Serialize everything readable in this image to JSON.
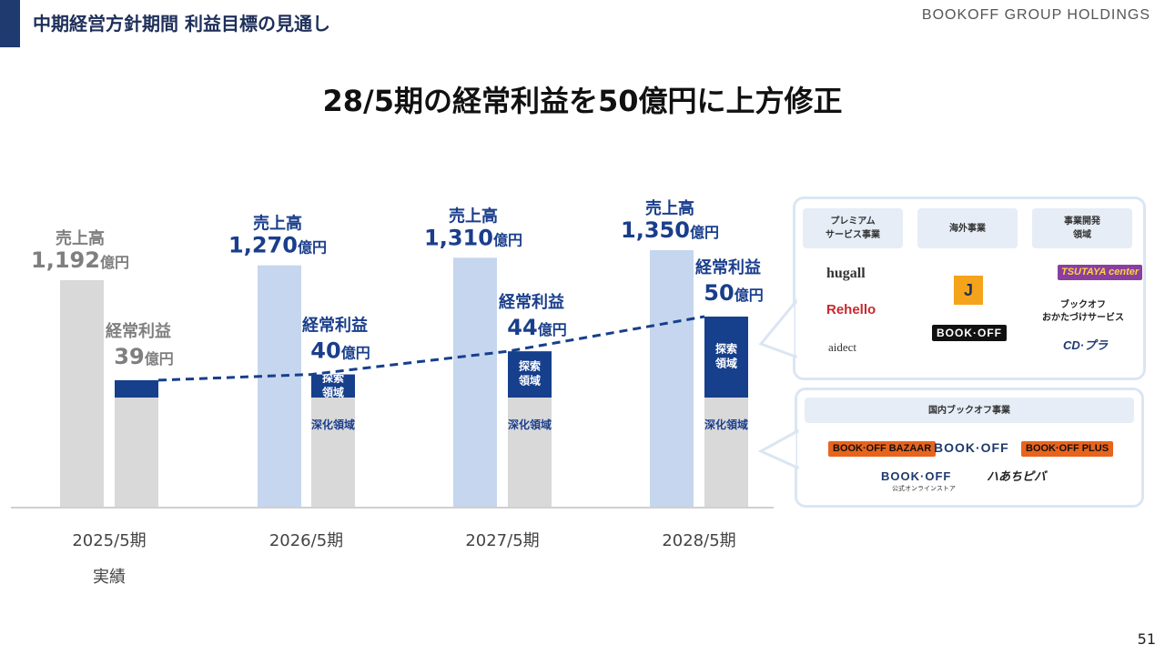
{
  "header": {
    "title": "中期経営方針期間 利益目標の見通し",
    "company": "BOOKOFF GROUP HOLDINGS"
  },
  "headline": "28/5期の経常利益を50億円に上方修正",
  "page_number": "51",
  "chart_data": {
    "type": "bar",
    "categories": [
      "2025/5期",
      "2026/5期",
      "2027/5期",
      "2028/5期"
    ],
    "category_sublabels": [
      "実績",
      "",
      "",
      ""
    ],
    "series": [
      {
        "name": "売上高",
        "values": [
          1192,
          1270,
          1310,
          1350
        ],
        "labels": [
          "1,192",
          "1,270",
          "1,310",
          "1,350"
        ],
        "unit": "億円"
      },
      {
        "name": "経常利益",
        "values": [
          39,
          40,
          44,
          50
        ],
        "labels": [
          "39",
          "40",
          "44",
          "50"
        ],
        "unit": "億円"
      }
    ],
    "segments": {
      "deepening": "深化領域",
      "exploration": "探索\n領域"
    },
    "colors": {
      "actual_bar": "#d9d9d9",
      "sales_bar": "#c5d6ee",
      "deepening_bar": "#d9d9d9",
      "exploration_bar": "#163f8c",
      "label_blue": "#1a3e8c",
      "label_gray": "#7f7f7f",
      "trend_line": "#163f8c"
    }
  },
  "panels": {
    "new_business": {
      "categories": [
        {
          "label": "プレミアム\nサービス事業",
          "logos": [
            "hugall",
            "Rehello",
            "aidect"
          ]
        },
        {
          "label": "海外事業",
          "logos": [
            "J",
            "BOOK·OFF"
          ]
        },
        {
          "label": "事業開発\n領域",
          "logos": [
            "TSUTAYA center",
            "ブックオフ\nおかたづけサービス",
            "CD·プラ"
          ]
        }
      ]
    },
    "domestic": {
      "label": "国内ブックオフ事業",
      "logos": [
        "BOOK·OFF BAZAAR",
        "BOOK·OFF",
        "BOOK·OFF PLUS",
        "BOOK·OFF",
        "公式オンラインストア",
        "ハあちピバ"
      ]
    }
  }
}
